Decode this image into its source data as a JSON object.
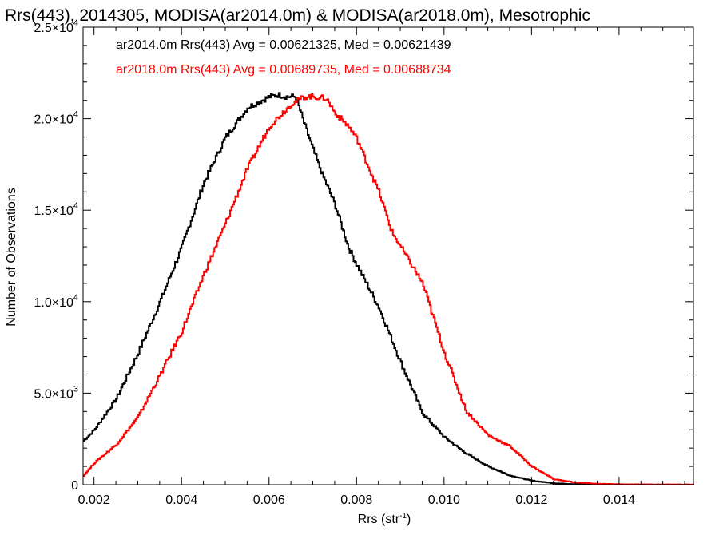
{
  "chart_data": {
    "type": "line",
    "step": true,
    "title": "Rrs(443), 2014305, MODISA(ar2014.0m) & MODISA(ar2018.0m), Mesotrophic",
    "xlabel_main": "Rrs (str",
    "xlabel_sup": "-1",
    "xlabel_close": ")",
    "ylabel": "Number of Observations",
    "xlim": [
      0.00175,
      0.0157
    ],
    "ylim": [
      0,
      25000
    ],
    "x_ticks": [
      {
        "value": 0.002,
        "label": "0.002"
      },
      {
        "value": 0.004,
        "label": "0.004"
      },
      {
        "value": 0.006,
        "label": "0.006"
      },
      {
        "value": 0.008,
        "label": "0.008"
      },
      {
        "value": 0.01,
        "label": "0.010"
      },
      {
        "value": 0.012,
        "label": "0.012"
      },
      {
        "value": 0.014,
        "label": "0.014"
      }
    ],
    "y_ticks": [
      {
        "value": 0,
        "mant": "0",
        "exp": ""
      },
      {
        "value": 5000,
        "mant": "5.0×10",
        "exp": "3"
      },
      {
        "value": 10000,
        "mant": "1.0×10",
        "exp": "4"
      },
      {
        "value": 15000,
        "mant": "1.5×10",
        "exp": "4"
      },
      {
        "value": 20000,
        "mant": "2.0×10",
        "exp": "4"
      },
      {
        "value": 25000,
        "mant": "2.5×10",
        "exp": "4"
      }
    ],
    "series": [
      {
        "legend": "ar2014.0m Rrs(443) Avg = 0.00621325, Med = 0.00621439",
        "color": "#000000",
        "points": [
          [
            0.00175,
            2400
          ],
          [
            0.002,
            3000
          ],
          [
            0.0025,
            4700
          ],
          [
            0.003,
            7200
          ],
          [
            0.0035,
            10000
          ],
          [
            0.004,
            13000
          ],
          [
            0.0045,
            16500
          ],
          [
            0.005,
            19000
          ],
          [
            0.0055,
            20600
          ],
          [
            0.006,
            21200
          ],
          [
            0.0062,
            21300
          ],
          [
            0.0064,
            21200
          ],
          [
            0.0066,
            21200
          ],
          [
            0.0068,
            19700
          ],
          [
            0.007,
            18300
          ],
          [
            0.0072,
            17000
          ],
          [
            0.0075,
            15300
          ],
          [
            0.0078,
            13000
          ],
          [
            0.008,
            12000
          ],
          [
            0.0085,
            9700
          ],
          [
            0.009,
            6700
          ],
          [
            0.0095,
            3900
          ],
          [
            0.01,
            2600
          ],
          [
            0.0105,
            1700
          ],
          [
            0.011,
            1000
          ],
          [
            0.0115,
            500
          ],
          [
            0.012,
            220
          ],
          [
            0.0125,
            80
          ],
          [
            0.013,
            30
          ],
          [
            0.0135,
            10
          ],
          [
            0.0157,
            0
          ]
        ]
      },
      {
        "legend": "ar2018.0m Rrs(443) Avg = 0.00689735, Med = 0.00688734",
        "color": "#ff0000",
        "points": [
          [
            0.00175,
            500
          ],
          [
            0.002,
            1200
          ],
          [
            0.0025,
            2200
          ],
          [
            0.003,
            3700
          ],
          [
            0.0035,
            6000
          ],
          [
            0.004,
            8400
          ],
          [
            0.0045,
            11500
          ],
          [
            0.005,
            14300
          ],
          [
            0.0055,
            17300
          ],
          [
            0.006,
            19600
          ],
          [
            0.0065,
            20800
          ],
          [
            0.0068,
            21200
          ],
          [
            0.007,
            21200
          ],
          [
            0.0073,
            21100
          ],
          [
            0.0075,
            20300
          ],
          [
            0.0078,
            19600
          ],
          [
            0.008,
            18900
          ],
          [
            0.0085,
            16000
          ],
          [
            0.0088,
            13800
          ],
          [
            0.009,
            13000
          ],
          [
            0.0095,
            11000
          ],
          [
            0.01,
            7200
          ],
          [
            0.0105,
            4000
          ],
          [
            0.011,
            2700
          ],
          [
            0.0115,
            2100
          ],
          [
            0.012,
            1000
          ],
          [
            0.0125,
            300
          ],
          [
            0.013,
            120
          ],
          [
            0.0135,
            50
          ],
          [
            0.014,
            20
          ],
          [
            0.0157,
            0
          ]
        ]
      }
    ]
  }
}
